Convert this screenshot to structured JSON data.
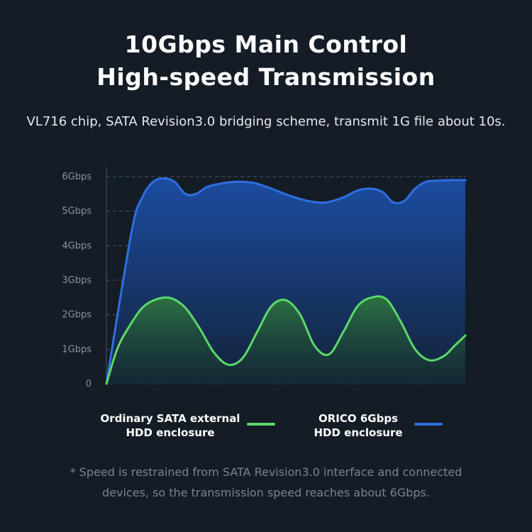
{
  "title": {
    "line1": "10Gbps Main Control",
    "line2": "High-speed Transmission"
  },
  "subtitle": "VL716 chip, SATA Revision3.0 bridging scheme, transmit 1G file about 10s.",
  "footnote": {
    "line1": "* Speed is restrained from SATA Revision3.0 interface and connected",
    "line2": "devices, so the transmission speed reaches about 6Gbps."
  },
  "colors": {
    "background": "#141c25",
    "orico_line": "#2f6fe0",
    "orico_fill": "#1a4ea8",
    "sata_line": "#5bd86a",
    "sata_fill": "#2f7a3c",
    "grid": "#4a5462",
    "tick_text": "#8a929c"
  },
  "chart_data": {
    "type": "area",
    "ylim": [
      0,
      6
    ],
    "xlim": [
      0,
      100
    ],
    "y_ticks": [
      "0",
      "1Gbps",
      "2Gbps",
      "3Gbps",
      "4Gbps",
      "5Gbps",
      "6Gbps"
    ],
    "grid": true,
    "legend_position": "bottom",
    "series": [
      {
        "name": "ORICO 6Gbps HDD enclosure",
        "color": "#2f6fe0",
        "x": [
          0,
          7,
          10,
          13,
          16,
          19,
          22,
          25,
          28,
          32,
          36,
          41,
          46,
          51,
          56,
          61,
          66,
          70,
          74,
          77,
          80,
          83,
          86,
          89,
          92,
          96,
          100
        ],
        "values": [
          0,
          4.4,
          5.4,
          5.85,
          5.95,
          5.85,
          5.5,
          5.5,
          5.7,
          5.8,
          5.85,
          5.82,
          5.65,
          5.45,
          5.3,
          5.25,
          5.4,
          5.6,
          5.65,
          5.55,
          5.25,
          5.3,
          5.65,
          5.85,
          5.88,
          5.9,
          5.9
        ]
      },
      {
        "name": "Ordinary SATA external HDD enclosure",
        "color": "#5bd86a",
        "x": [
          0,
          3,
          6,
          10,
          14,
          18,
          22,
          26,
          30,
          34,
          38,
          42,
          46,
          50,
          54,
          58,
          62,
          66,
          70,
          74,
          78,
          82,
          86,
          90,
          94,
          97,
          100
        ],
        "values": [
          0,
          1.0,
          1.6,
          2.2,
          2.45,
          2.48,
          2.2,
          1.6,
          0.9,
          0.55,
          0.75,
          1.5,
          2.25,
          2.42,
          2.0,
          1.1,
          0.85,
          1.5,
          2.25,
          2.5,
          2.45,
          1.8,
          1.0,
          0.68,
          0.8,
          1.1,
          1.4
        ]
      }
    ]
  },
  "legend": [
    {
      "label": "Ordinary SATA external\nHDD enclosure",
      "color": "#5bd86a"
    },
    {
      "label": "ORICO 6Gbps\nHDD enclosure",
      "color": "#2f6fe0"
    }
  ]
}
